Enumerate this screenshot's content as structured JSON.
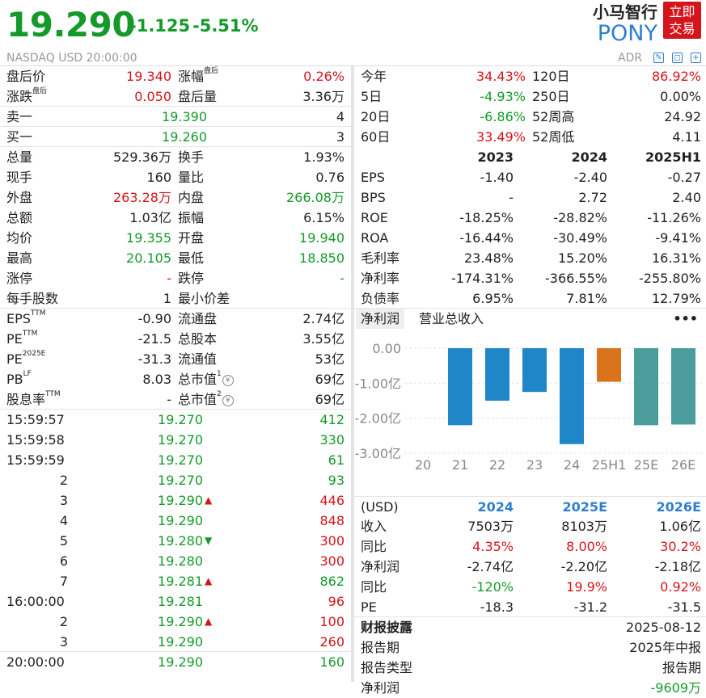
{
  "header": {
    "price": "19.290",
    "change": "-1.125",
    "change_pct": "-5.51%",
    "meta": "NASDAQ  USD  20:00:00",
    "company_name": "小马智行",
    "ticker": "PONY",
    "trade_button_line1": "立即",
    "trade_button_line2": "交易",
    "adr_label": "ADR"
  },
  "quote_rows": [
    {
      "l1": "盘后价",
      "v1": "19.340",
      "c1": "red",
      "l2": "涨幅",
      "s2": "盘后",
      "v2": "0.26%",
      "c2": "red"
    },
    {
      "l1": "涨跌",
      "s1": "盘后",
      "v1": "0.050",
      "c1": "red",
      "l2": "盘后量",
      "v2": "3.36万",
      "c2": "dark"
    }
  ],
  "book_rows": [
    {
      "l1": "卖一",
      "v1": "19.390",
      "c1": "green",
      "v2": "4"
    },
    {
      "l1": "买一",
      "v1": "19.260",
      "c1": "green",
      "v2": "3"
    }
  ],
  "stats_rows": [
    {
      "l1": "总量",
      "v1": "529.36万",
      "c1": "dark",
      "l2": "换手",
      "v2": "1.93%",
      "c2": "dark"
    },
    {
      "l1": "现手",
      "v1": "160",
      "c1": "dark",
      "l2": "量比",
      "v2": "0.76",
      "c2": "dark"
    },
    {
      "l1": "外盘",
      "v1": "263.28万",
      "c1": "red",
      "l2": "内盘",
      "v2": "266.08万",
      "c2": "green"
    },
    {
      "l1": "总额",
      "v1": "1.03亿",
      "c1": "dark",
      "l2": "振幅",
      "v2": "6.15%",
      "c2": "dark"
    },
    {
      "l1": "均价",
      "v1": "19.355",
      "c1": "green",
      "l2": "开盘",
      "v2": "19.940",
      "c2": "green"
    },
    {
      "l1": "最高",
      "v1": "20.105",
      "c1": "green",
      "l2": "最低",
      "v2": "18.850",
      "c2": "green"
    },
    {
      "l1": "涨停",
      "v1": "-",
      "c1": "red",
      "l2": "跌停",
      "v2": "-",
      "c2": "green"
    },
    {
      "l1": "每手股数",
      "v1": "1",
      "c1": "dark",
      "l2": "最小价差",
      "v2": "",
      "c2": "dark"
    }
  ],
  "valuation_rows": [
    {
      "l1": "EPS",
      "s1": "TTM",
      "v1": "-0.90",
      "l2": "流通盘",
      "v2": "2.74亿"
    },
    {
      "l1": "PE",
      "s1": "TTM",
      "v1": "-21.5",
      "l2": "总股本",
      "v2": "3.55亿"
    },
    {
      "l1": "PE",
      "s1": "2025E",
      "v1": "-31.3",
      "l2": "流通值",
      "v2": "53亿"
    },
    {
      "l1": "PB",
      "s1": "LF",
      "v1": "8.03",
      "l2": "总市值",
      "s2": "1",
      "v2": "69亿"
    },
    {
      "l1": "股息率",
      "s1": "TTM",
      "v1": "-",
      "l2": "总市值",
      "s2": "2",
      "v2": "69亿"
    }
  ],
  "currency_icon": "¥",
  "ticks": [
    {
      "time": "15:59:57",
      "price": "19.270",
      "arrow": "",
      "vol": "412",
      "vc": "green"
    },
    {
      "time": "15:59:58",
      "price": "19.270",
      "arrow": "",
      "vol": "330",
      "vc": "green"
    },
    {
      "time": "15:59:59",
      "price": "19.270",
      "arrow": "",
      "vol": "61",
      "vc": "green"
    },
    {
      "time": "2",
      "price": "19.270",
      "arrow": "",
      "vol": "93",
      "vc": "green"
    },
    {
      "time": "3",
      "price": "19.290",
      "arrow": "up",
      "vol": "446",
      "vc": "red"
    },
    {
      "time": "4",
      "price": "19.290",
      "arrow": "",
      "vol": "848",
      "vc": "red"
    },
    {
      "time": "5",
      "price": "19.280",
      "arrow": "down",
      "vol": "300",
      "vc": "red"
    },
    {
      "time": "6",
      "price": "19.280",
      "arrow": "",
      "vol": "300",
      "vc": "red"
    },
    {
      "time": "7",
      "price": "19.281",
      "arrow": "up",
      "vol": "862",
      "vc": "green"
    },
    {
      "time": "16:00:00",
      "price": "19.281",
      "arrow": "",
      "vol": "96",
      "vc": "red"
    },
    {
      "time": "2",
      "price": "19.290",
      "arrow": "up",
      "vol": "100",
      "vc": "red"
    },
    {
      "time": "3",
      "price": "19.290",
      "arrow": "",
      "vol": "260",
      "vc": "red"
    },
    {
      "time": "20:00:00",
      "price": "19.290",
      "arrow": "",
      "vol": "160",
      "vc": "green"
    }
  ],
  "returns_rows": [
    {
      "l1": "今年",
      "v1": "34.43%",
      "c1": "red",
      "l2": "120日",
      "v2": "86.92%",
      "c2": "red"
    },
    {
      "l1": "5日",
      "v1": "-4.93%",
      "c1": "green",
      "l2": "250日",
      "v2": "0.00%",
      "c2": "dark"
    },
    {
      "l1": "20日",
      "v1": "-6.86%",
      "c1": "green",
      "l2": "52周高",
      "v2": "24.92",
      "c2": "dark"
    },
    {
      "l1": "60日",
      "v1": "33.49%",
      "c1": "red",
      "l2": "52周低",
      "v2": "4.11",
      "c2": "dark"
    }
  ],
  "fin_headers": [
    "2023",
    "2024",
    "2025H1"
  ],
  "fin_rows": [
    {
      "label": "EPS",
      "vals": [
        "-1.40",
        "-2.40",
        "-0.27"
      ]
    },
    {
      "label": "BPS",
      "vals": [
        "-",
        "2.72",
        "2.40"
      ]
    },
    {
      "label": "ROE",
      "vals": [
        "-18.25%",
        "-28.82%",
        "-11.26%"
      ]
    },
    {
      "label": "ROA",
      "vals": [
        "-16.44%",
        "-30.49%",
        "-9.41%"
      ]
    },
    {
      "label": "毛利率",
      "vals": [
        "23.48%",
        "15.20%",
        "16.31%"
      ]
    },
    {
      "label": "净利率",
      "vals": [
        "-174.31%",
        "-366.55%",
        "-255.80%"
      ]
    },
    {
      "label": "负债率",
      "vals": [
        "6.95%",
        "7.81%",
        "12.79%"
      ]
    }
  ],
  "chart_tabs": {
    "active": "净利润",
    "inactive": "营业总收入",
    "more": "•••"
  },
  "chart_data": {
    "type": "bar",
    "title": "净利润",
    "categories": [
      "20",
      "21",
      "22",
      "23",
      "24",
      "25H1",
      "25E",
      "26E"
    ],
    "values": [
      0,
      -2.2,
      -1.5,
      -1.25,
      -2.74,
      -0.96,
      -2.2,
      -2.18
    ],
    "bar_kinds": [
      "actual",
      "actual",
      "actual",
      "actual",
      "actual",
      "interim",
      "estimate",
      "estimate"
    ],
    "y_ticks": [
      "0.00",
      "-1.00亿",
      "-2.00亿",
      "-3.00亿"
    ],
    "ylim": [
      -3,
      0
    ],
    "colors": {
      "actual": "#1f86c8",
      "interim": "#d9741c",
      "estimate": "#4a9d9a"
    }
  },
  "forecast_headers": [
    "(USD)",
    "2024",
    "2025E",
    "2026E"
  ],
  "forecast_rows": [
    {
      "label": "收入",
      "vals": [
        "7503万",
        "8103万",
        "1.06亿"
      ],
      "colors": [
        "dark",
        "dark",
        "dark"
      ]
    },
    {
      "label": "同比",
      "vals": [
        "4.35%",
        "8.00%",
        "30.2%"
      ],
      "colors": [
        "red",
        "red",
        "red"
      ]
    },
    {
      "label": "净利润",
      "vals": [
        "-2.74亿",
        "-2.20亿",
        "-2.18亿"
      ],
      "colors": [
        "dark",
        "dark",
        "dark"
      ]
    },
    {
      "label": "同比",
      "vals": [
        "-120%",
        "19.9%",
        "0.92%"
      ],
      "colors": [
        "green",
        "red",
        "red"
      ]
    },
    {
      "label": "PE",
      "vals": [
        "-18.3",
        "-31.2",
        "-31.5"
      ],
      "colors": [
        "dark",
        "dark",
        "dark"
      ]
    }
  ],
  "disclosure": {
    "title": "财报披露",
    "date": "2025-08-12",
    "period_label": "报告期",
    "period_value": "2025年中报",
    "type_label": "报告类型",
    "type_value": "报告期",
    "profit_label": "净利润",
    "profit_value": "-9609万"
  }
}
